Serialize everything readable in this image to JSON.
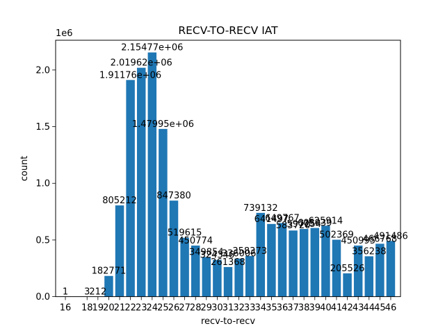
{
  "chart_data": {
    "type": "bar",
    "title": "RECV-TO-RECV IAT",
    "xlabel": "recv-to-recv",
    "ylabel": "count",
    "y_offset_label": "1e6",
    "ylim": [
      0,
      2262508
    ],
    "xlim": [
      15.1,
      46.9
    ],
    "grid": false,
    "bar_color": "#1f77b4",
    "x_tick_labels": [
      "16",
      "18",
      "19",
      "20",
      "21",
      "22",
      "23",
      "24",
      "25",
      "26",
      "27",
      "28",
      "29",
      "30",
      "31",
      "32",
      "33",
      "34",
      "35",
      "36",
      "37",
      "38",
      "39",
      "40",
      "41",
      "42",
      "43",
      "44",
      "45",
      "46"
    ],
    "y_ticks": [
      0.0,
      0.5,
      1.0,
      1.5,
      2.0
    ],
    "y_tick_labels": [
      "0.0",
      "0.5",
      "1.0",
      "1.5",
      "2.0"
    ],
    "categories": [
      16,
      18,
      19,
      20,
      21,
      22,
      23,
      24,
      25,
      26,
      27,
      28,
      29,
      30,
      31,
      32,
      33,
      34,
      35,
      36,
      37,
      38,
      39,
      40,
      41,
      42,
      43,
      44,
      45,
      46
    ],
    "values": [
      1,
      3,
      212,
      182771,
      805212,
      1911760,
      2019620,
      2154770,
      1479950,
      847380,
      519615,
      450774,
      349854,
      324346,
      261368,
      336006,
      358373,
      739132,
      641497,
      649767,
      583720,
      597154,
      605939,
      625914,
      502369,
      205526,
      450995,
      356238,
      466768,
      491486
    ],
    "data_labels": [
      "1",
      "3",
      "212",
      "182771",
      "805212",
      "1.91176e+06",
      "2.01962e+06",
      "2.15477e+06",
      "1.47995e+06",
      "847380",
      "519615",
      "450774",
      "349854",
      "324346",
      "261368",
      "336006",
      "358373",
      "739132",
      "641497",
      "649767",
      "583720",
      "597154",
      "605939",
      "625914",
      "502369",
      "205526",
      "450995",
      "356238",
      "466768",
      "491486"
    ]
  }
}
